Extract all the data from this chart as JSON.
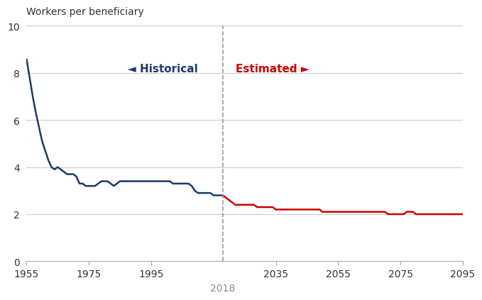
{
  "historical_years": [
    1955,
    1956,
    1957,
    1958,
    1959,
    1960,
    1961,
    1962,
    1963,
    1964,
    1965,
    1966,
    1967,
    1968,
    1969,
    1970,
    1971,
    1972,
    1973,
    1974,
    1975,
    1976,
    1977,
    1978,
    1979,
    1980,
    1981,
    1982,
    1983,
    1984,
    1985,
    1986,
    1987,
    1988,
    1989,
    1990,
    1991,
    1992,
    1993,
    1994,
    1995,
    1996,
    1997,
    1998,
    1999,
    2000,
    2001,
    2002,
    2003,
    2004,
    2005,
    2006,
    2007,
    2008,
    2009,
    2010,
    2011,
    2012,
    2013,
    2014,
    2015,
    2016,
    2017,
    2018
  ],
  "historical_values": [
    8.6,
    7.8,
    7.0,
    6.3,
    5.7,
    5.1,
    4.7,
    4.3,
    4.0,
    3.9,
    4.0,
    3.9,
    3.8,
    3.7,
    3.7,
    3.7,
    3.6,
    3.3,
    3.3,
    3.2,
    3.2,
    3.2,
    3.2,
    3.3,
    3.4,
    3.4,
    3.4,
    3.3,
    3.2,
    3.3,
    3.4,
    3.4,
    3.4,
    3.4,
    3.4,
    3.4,
    3.4,
    3.4,
    3.4,
    3.4,
    3.4,
    3.4,
    3.4,
    3.4,
    3.4,
    3.4,
    3.4,
    3.3,
    3.3,
    3.3,
    3.3,
    3.3,
    3.3,
    3.2,
    3.0,
    2.9,
    2.9,
    2.9,
    2.9,
    2.9,
    2.8,
    2.8,
    2.8,
    2.8
  ],
  "estimated_years": [
    2018,
    2019,
    2020,
    2021,
    2022,
    2023,
    2024,
    2025,
    2026,
    2027,
    2028,
    2029,
    2030,
    2031,
    2032,
    2033,
    2034,
    2035,
    2036,
    2037,
    2038,
    2039,
    2040,
    2041,
    2042,
    2043,
    2044,
    2045,
    2046,
    2047,
    2048,
    2049,
    2050,
    2051,
    2052,
    2053,
    2054,
    2055,
    2056,
    2057,
    2058,
    2059,
    2060,
    2061,
    2062,
    2063,
    2064,
    2065,
    2066,
    2067,
    2068,
    2069,
    2070,
    2071,
    2072,
    2073,
    2074,
    2075,
    2076,
    2077,
    2078,
    2079,
    2080,
    2081,
    2082,
    2083,
    2084,
    2085,
    2086,
    2087,
    2088,
    2089,
    2090,
    2091,
    2092,
    2093,
    2094,
    2095
  ],
  "estimated_values": [
    2.8,
    2.7,
    2.6,
    2.5,
    2.4,
    2.4,
    2.4,
    2.4,
    2.4,
    2.4,
    2.4,
    2.3,
    2.3,
    2.3,
    2.3,
    2.3,
    2.3,
    2.2,
    2.2,
    2.2,
    2.2,
    2.2,
    2.2,
    2.2,
    2.2,
    2.2,
    2.2,
    2.2,
    2.2,
    2.2,
    2.2,
    2.2,
    2.1,
    2.1,
    2.1,
    2.1,
    2.1,
    2.1,
    2.1,
    2.1,
    2.1,
    2.1,
    2.1,
    2.1,
    2.1,
    2.1,
    2.1,
    2.1,
    2.1,
    2.1,
    2.1,
    2.1,
    2.1,
    2.0,
    2.0,
    2.0,
    2.0,
    2.0,
    2.0,
    2.1,
    2.1,
    2.1,
    2.0,
    2.0,
    2.0,
    2.0,
    2.0,
    2.0,
    2.0,
    2.0,
    2.0,
    2.0,
    2.0,
    2.0,
    2.0,
    2.0,
    2.0,
    2.0
  ],
  "historical_color": "#1a3a6b",
  "estimated_color": "#cc0000",
  "divider_year": 2018,
  "divider_label": "2018",
  "ylabel": "Workers per beneficiary",
  "ylim": [
    0,
    10
  ],
  "yticks": [
    0,
    2,
    4,
    6,
    8,
    10
  ],
  "xlim": [
    1955,
    2095
  ],
  "xticks": [
    1955,
    1975,
    1995,
    2035,
    2055,
    2075,
    2095
  ],
  "xtick_labels": [
    "1955",
    "1975",
    "1995",
    "2035",
    "2055",
    "2075",
    "2095"
  ],
  "label_historical": "Historical",
  "label_estimated": "Estimated",
  "arrow_left": "◄",
  "arrow_right": "►",
  "grid_color": "#cccccc",
  "background_color": "#ffffff",
  "line_width": 1.8
}
